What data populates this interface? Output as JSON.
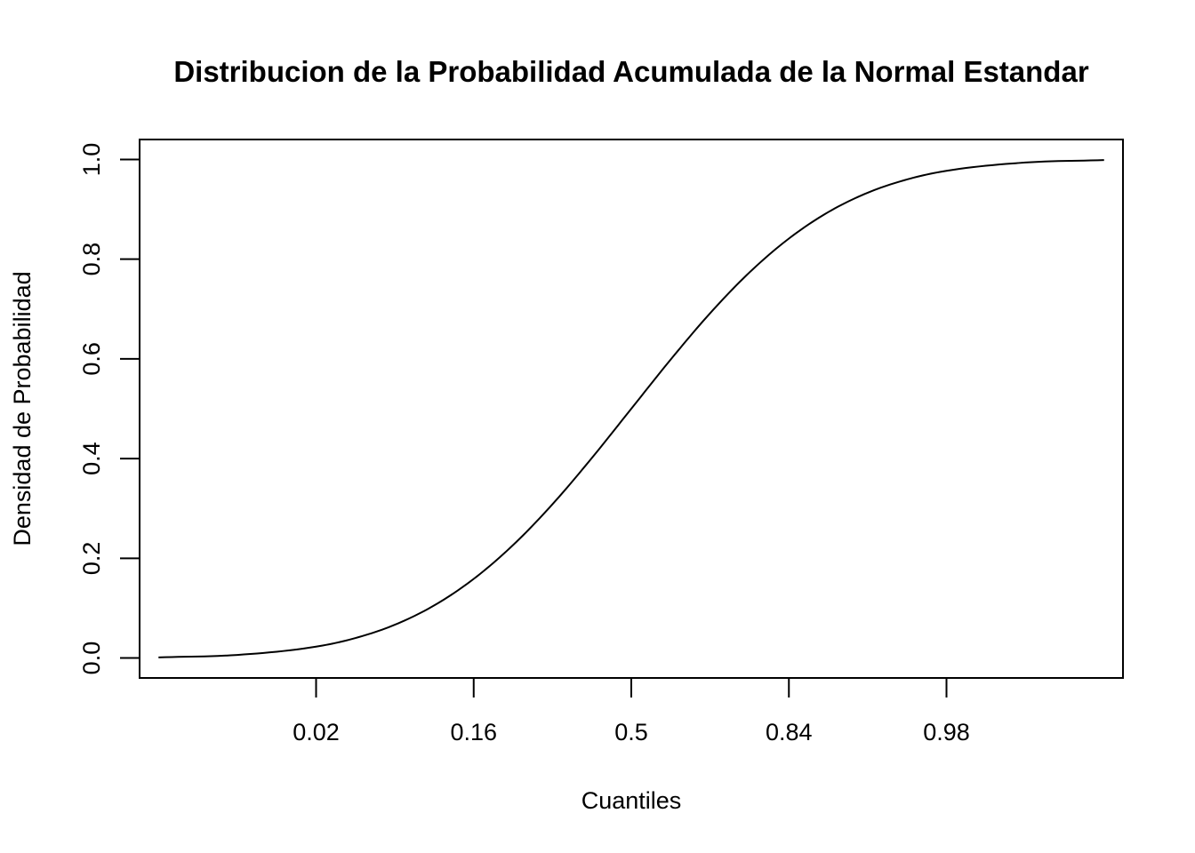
{
  "chart_data": {
    "type": "line",
    "title": "Distribucion de la Probabilidad Acumulada de la Normal Estandar",
    "xlabel": "Cuantiles",
    "ylabel": "Densidad de Probabilidad",
    "xlim": [
      -3.12,
      3.12
    ],
    "ylim": [
      -0.04,
      1.04
    ],
    "x_ticks": [
      {
        "value": -2,
        "label": "0.02"
      },
      {
        "value": -1,
        "label": "0.16"
      },
      {
        "value": 0,
        "label": "0.5"
      },
      {
        "value": 1,
        "label": "0.84"
      },
      {
        "value": 2,
        "label": "0.98"
      }
    ],
    "y_ticks": [
      {
        "value": 0.0,
        "label": "0.0"
      },
      {
        "value": 0.2,
        "label": "0.2"
      },
      {
        "value": 0.4,
        "label": "0.4"
      },
      {
        "value": 0.6,
        "label": "0.6"
      },
      {
        "value": 0.8,
        "label": "0.8"
      },
      {
        "value": 1.0,
        "label": "1.0"
      }
    ],
    "series": [
      {
        "x": [
          -3.0,
          -2.5,
          -2.0,
          -1.75,
          -1.5,
          -1.25,
          -1.0,
          -0.75,
          -0.5,
          -0.25,
          0.0,
          0.25,
          0.5,
          0.75,
          1.0,
          1.25,
          1.5,
          1.75,
          2.0,
          2.5,
          3.0
        ],
        "y": [
          0.0013,
          0.0062,
          0.0228,
          0.0401,
          0.0668,
          0.1056,
          0.1587,
          0.2266,
          0.3085,
          0.4013,
          0.5,
          0.5987,
          0.6915,
          0.7734,
          0.8413,
          0.8944,
          0.9332,
          0.9599,
          0.9772,
          0.9938,
          0.9987
        ]
      }
    ],
    "grid": false,
    "legend": "none",
    "line_color": "#000000"
  }
}
